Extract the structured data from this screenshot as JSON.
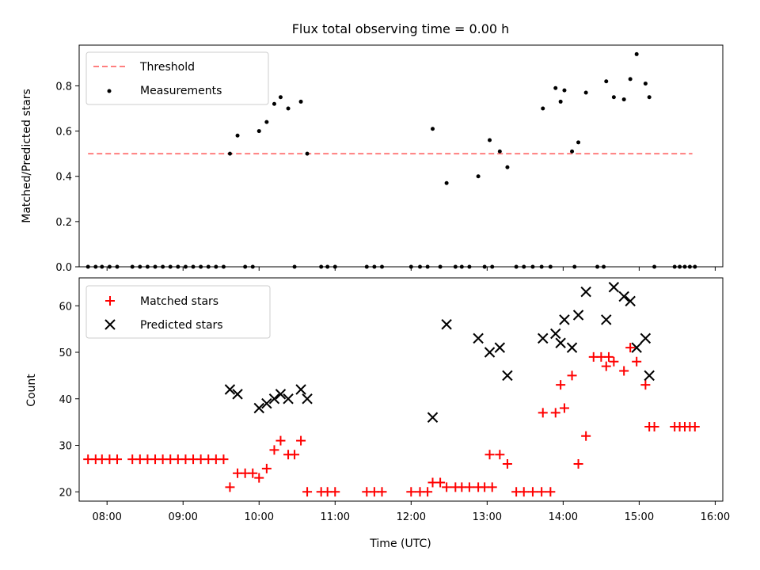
{
  "chart_data": [
    {
      "type": "scatter",
      "title": "Flux total observing time = 0.00 h",
      "xlabel": "",
      "ylabel": "Matched/Predicted stars",
      "xlim": [
        "07:38",
        "16:06"
      ],
      "ylim": [
        0,
        0.98
      ],
      "yticks": [
        0.0,
        0.2,
        0.4,
        0.6,
        0.8
      ],
      "ytick_labels": [
        "0.0",
        "0.2",
        "0.4",
        "0.6",
        "0.8"
      ],
      "grid": false,
      "legend": {
        "placement": "top-left",
        "entries": [
          "Threshold",
          "Measurements"
        ]
      },
      "threshold": {
        "name": "Threshold",
        "y": 0.5,
        "x_range": [
          "07:45",
          "15:42"
        ],
        "color": "#ff7f7f",
        "style": "dashed"
      },
      "series": [
        {
          "name": "Measurements",
          "color": "#000000",
          "marker": "dot",
          "points": [
            [
              "07:45",
              0
            ],
            [
              "07:51",
              0
            ],
            [
              "07:56",
              0
            ],
            [
              "08:02",
              0
            ],
            [
              "08:08",
              0
            ],
            [
              "08:20",
              0
            ],
            [
              "08:26",
              0
            ],
            [
              "08:32",
              0
            ],
            [
              "08:38",
              0
            ],
            [
              "08:44",
              0
            ],
            [
              "08:50",
              0
            ],
            [
              "08:56",
              0
            ],
            [
              "09:02",
              0
            ],
            [
              "09:08",
              0
            ],
            [
              "09:14",
              0
            ],
            [
              "09:20",
              0
            ],
            [
              "09:26",
              0
            ],
            [
              "09:32",
              0
            ],
            [
              "09:37",
              0.5
            ],
            [
              "09:43",
              0.58
            ],
            [
              "09:49",
              0
            ],
            [
              "09:55",
              0
            ],
            [
              "10:00",
              0.6
            ],
            [
              "10:06",
              0.64
            ],
            [
              "10:12",
              0.72
            ],
            [
              "10:17",
              0.75
            ],
            [
              "10:23",
              0.7
            ],
            [
              "10:28",
              0
            ],
            [
              "10:33",
              0.73
            ],
            [
              "10:38",
              0.5
            ],
            [
              "10:49",
              0
            ],
            [
              "10:54",
              0
            ],
            [
              "11:00",
              0
            ],
            [
              "11:25",
              0
            ],
            [
              "11:31",
              0
            ],
            [
              "11:37",
              0
            ],
            [
              "12:00",
              0
            ],
            [
              "12:07",
              0
            ],
            [
              "12:13",
              0
            ],
            [
              "12:17",
              0.61
            ],
            [
              "12:23",
              0
            ],
            [
              "12:28",
              0.37
            ],
            [
              "12:35",
              0
            ],
            [
              "12:40",
              0
            ],
            [
              "12:46",
              0
            ],
            [
              "12:53",
              0.4
            ],
            [
              "12:58",
              0
            ],
            [
              "13:04",
              0
            ],
            [
              "13:02",
              0.56
            ],
            [
              "13:10",
              0.51
            ],
            [
              "13:16",
              0.44
            ],
            [
              "13:23",
              0
            ],
            [
              "13:29",
              0
            ],
            [
              "13:36",
              0
            ],
            [
              "13:43",
              0
            ],
            [
              "13:50",
              0
            ],
            [
              "13:44",
              0.7
            ],
            [
              "13:54",
              0.79
            ],
            [
              "13:58",
              0.73
            ],
            [
              "14:01",
              0.78
            ],
            [
              "14:07",
              0.51
            ],
            [
              "14:12",
              0.55
            ],
            [
              "14:09",
              0
            ],
            [
              "14:18",
              0.77
            ],
            [
              "14:27",
              0
            ],
            [
              "14:32",
              0
            ],
            [
              "14:34",
              0.82
            ],
            [
              "14:40",
              0.75
            ],
            [
              "14:48",
              0.74
            ],
            [
              "14:53",
              0.83
            ],
            [
              "14:58",
              0.94
            ],
            [
              "15:05",
              0.81
            ],
            [
              "15:08",
              0.75
            ],
            [
              "15:12",
              0
            ],
            [
              "15:28",
              0
            ],
            [
              "15:32",
              0
            ],
            [
              "15:36",
              0
            ],
            [
              "15:40",
              0
            ],
            [
              "15:44",
              0
            ]
          ]
        }
      ]
    },
    {
      "type": "scatter",
      "title": "",
      "xlabel": "Time (UTC)",
      "ylabel": "Count",
      "xlim": [
        "07:38",
        "16:06"
      ],
      "ylim": [
        18,
        66
      ],
      "yticks": [
        20,
        30,
        40,
        50,
        60
      ],
      "ytick_labels": [
        "20",
        "30",
        "40",
        "50",
        "60"
      ],
      "xticks": [
        "08:00",
        "09:00",
        "10:00",
        "11:00",
        "12:00",
        "13:00",
        "14:00",
        "15:00",
        "16:00"
      ],
      "grid": false,
      "legend": {
        "placement": "top-left",
        "entries": [
          "Matched stars",
          "Predicted stars"
        ]
      },
      "series": [
        {
          "name": "Matched stars",
          "color": "#ff0000",
          "marker": "plus",
          "points": [
            [
              "07:45",
              27
            ],
            [
              "07:51",
              27
            ],
            [
              "07:56",
              27
            ],
            [
              "08:02",
              27
            ],
            [
              "08:08",
              27
            ],
            [
              "08:20",
              27
            ],
            [
              "08:26",
              27
            ],
            [
              "08:32",
              27
            ],
            [
              "08:38",
              27
            ],
            [
              "08:44",
              27
            ],
            [
              "08:50",
              27
            ],
            [
              "08:56",
              27
            ],
            [
              "09:02",
              27
            ],
            [
              "09:08",
              27
            ],
            [
              "09:14",
              27
            ],
            [
              "09:20",
              27
            ],
            [
              "09:26",
              27
            ],
            [
              "09:32",
              27
            ],
            [
              "09:37",
              21
            ],
            [
              "09:43",
              24
            ],
            [
              "09:49",
              24
            ],
            [
              "09:55",
              24
            ],
            [
              "10:00",
              23
            ],
            [
              "10:06",
              25
            ],
            [
              "10:12",
              29
            ],
            [
              "10:17",
              31
            ],
            [
              "10:23",
              28
            ],
            [
              "10:28",
              28
            ],
            [
              "10:33",
              31
            ],
            [
              "10:38",
              20
            ],
            [
              "10:49",
              20
            ],
            [
              "10:54",
              20
            ],
            [
              "11:00",
              20
            ],
            [
              "11:25",
              20
            ],
            [
              "11:31",
              20
            ],
            [
              "11:37",
              20
            ],
            [
              "12:00",
              20
            ],
            [
              "12:07",
              20
            ],
            [
              "12:13",
              20
            ],
            [
              "12:17",
              22
            ],
            [
              "12:23",
              22
            ],
            [
              "12:28",
              21
            ],
            [
              "12:35",
              21
            ],
            [
              "12:40",
              21
            ],
            [
              "12:46",
              21
            ],
            [
              "12:53",
              21
            ],
            [
              "12:58",
              21
            ],
            [
              "13:04",
              21
            ],
            [
              "13:02",
              28
            ],
            [
              "13:10",
              28
            ],
            [
              "13:16",
              26
            ],
            [
              "13:23",
              20
            ],
            [
              "13:29",
              20
            ],
            [
              "13:36",
              20
            ],
            [
              "13:43",
              20
            ],
            [
              "13:50",
              20
            ],
            [
              "13:44",
              37
            ],
            [
              "13:54",
              37
            ],
            [
              "13:58",
              43
            ],
            [
              "14:01",
              38
            ],
            [
              "14:07",
              45
            ],
            [
              "14:12",
              26
            ],
            [
              "14:18",
              32
            ],
            [
              "14:24",
              49
            ],
            [
              "14:30",
              49
            ],
            [
              "14:36",
              49
            ],
            [
              "14:34",
              47
            ],
            [
              "14:40",
              48
            ],
            [
              "14:48",
              46
            ],
            [
              "14:53",
              51
            ],
            [
              "14:58",
              48
            ],
            [
              "15:05",
              43
            ],
            [
              "15:08",
              34
            ],
            [
              "15:12",
              34
            ],
            [
              "15:28",
              34
            ],
            [
              "15:32",
              34
            ],
            [
              "15:36",
              34
            ],
            [
              "15:40",
              34
            ],
            [
              "15:44",
              34
            ]
          ]
        },
        {
          "name": "Predicted stars",
          "color": "#000000",
          "marker": "x",
          "points": [
            [
              "09:37",
              42
            ],
            [
              "09:43",
              41
            ],
            [
              "10:00",
              38
            ],
            [
              "10:06",
              39
            ],
            [
              "10:12",
              40
            ],
            [
              "10:17",
              41
            ],
            [
              "10:23",
              40
            ],
            [
              "10:33",
              42
            ],
            [
              "10:38",
              40
            ],
            [
              "12:17",
              36
            ],
            [
              "12:28",
              56
            ],
            [
              "12:53",
              53
            ],
            [
              "13:02",
              50
            ],
            [
              "13:10",
              51
            ],
            [
              "13:16",
              45
            ],
            [
              "13:44",
              53
            ],
            [
              "13:54",
              54
            ],
            [
              "13:58",
              52
            ],
            [
              "14:01",
              57
            ],
            [
              "14:07",
              51
            ],
            [
              "14:12",
              58
            ],
            [
              "14:18",
              63
            ],
            [
              "14:34",
              57
            ],
            [
              "14:40",
              64
            ],
            [
              "14:48",
              62
            ],
            [
              "14:53",
              61
            ],
            [
              "14:58",
              51
            ],
            [
              "15:05",
              53
            ],
            [
              "15:08",
              45
            ]
          ]
        }
      ]
    }
  ]
}
